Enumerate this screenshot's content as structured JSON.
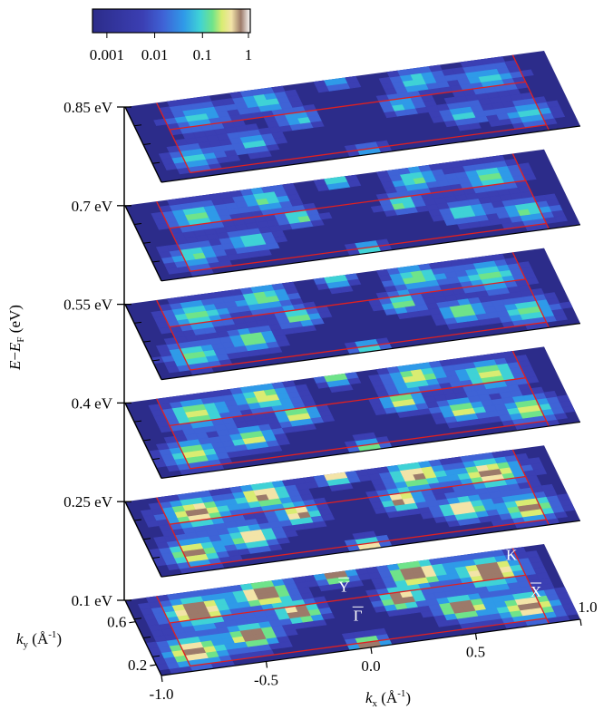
{
  "chart_data": {
    "type": "heatmap",
    "title": "",
    "colorbar": {
      "scale": "log",
      "range": [
        0.0005,
        1
      ],
      "ticks": [
        "0.001",
        "0.01",
        "0.1",
        "1"
      ],
      "tick_values": [
        0.001,
        0.01,
        0.1,
        1
      ],
      "colormap": [
        "#2c2c8a",
        "#3b3fb3",
        "#3f63d6",
        "#2f9ae8",
        "#3fd2d6",
        "#6fe38a",
        "#d9ec72",
        "#f3e4a8",
        "#9c7a6a",
        "#ffffff"
      ]
    },
    "z_axis": {
      "label_main": "E",
      "label_minus": "−",
      "label_main2": "E",
      "label_sub": "F",
      "label_unit": " (eV)",
      "ticks": [
        "0.85 eV",
        "0.7 eV",
        "0.55 eV",
        "0.4 eV",
        "0.25 eV",
        "0.1 eV"
      ],
      "values": [
        0.85,
        0.7,
        0.55,
        0.4,
        0.25,
        0.1
      ]
    },
    "x_axis": {
      "label_main": "k",
      "label_sub": "x",
      "label_unit": " (Å",
      "label_sup": "-1",
      "label_close": ")",
      "range": [
        -1.0,
        1.0
      ],
      "ticks": [
        "-1.0",
        "-0.5",
        "0.0",
        "0.5",
        "1.0"
      ],
      "tick_values": [
        -1.0,
        -0.5,
        0.0,
        0.5,
        1.0
      ]
    },
    "y_axis": {
      "label_main": "k",
      "label_sub": "y",
      "label_unit": " (Å",
      "label_sup": "-1",
      "label_close": ")",
      "range": [
        0.1,
        0.8
      ],
      "ticks": [
        "0.6",
        "0.2"
      ],
      "tick_values": [
        0.6,
        0.2
      ]
    },
    "slices": [
      {
        "energy": 0.85,
        "intensity": 0.35
      },
      {
        "energy": 0.7,
        "intensity": 0.45
      },
      {
        "energy": 0.55,
        "intensity": 0.55
      },
      {
        "energy": 0.4,
        "intensity": 0.65
      },
      {
        "energy": 0.25,
        "intensity": 0.85
      },
      {
        "energy": 0.1,
        "intensity": 1.0
      }
    ],
    "brillouin_zone_lines_color": "#e02020",
    "high_symmetry_points": [
      {
        "label": "Γ",
        "kx": 0.0,
        "ky": 0.35
      },
      {
        "label": "Y",
        "kx": 0.0,
        "ky": 0.62
      },
      {
        "label": "X",
        "kx": 0.85,
        "ky": 0.35
      },
      {
        "label": "K",
        "kx": 0.82,
        "ky": 0.7
      }
    ]
  }
}
